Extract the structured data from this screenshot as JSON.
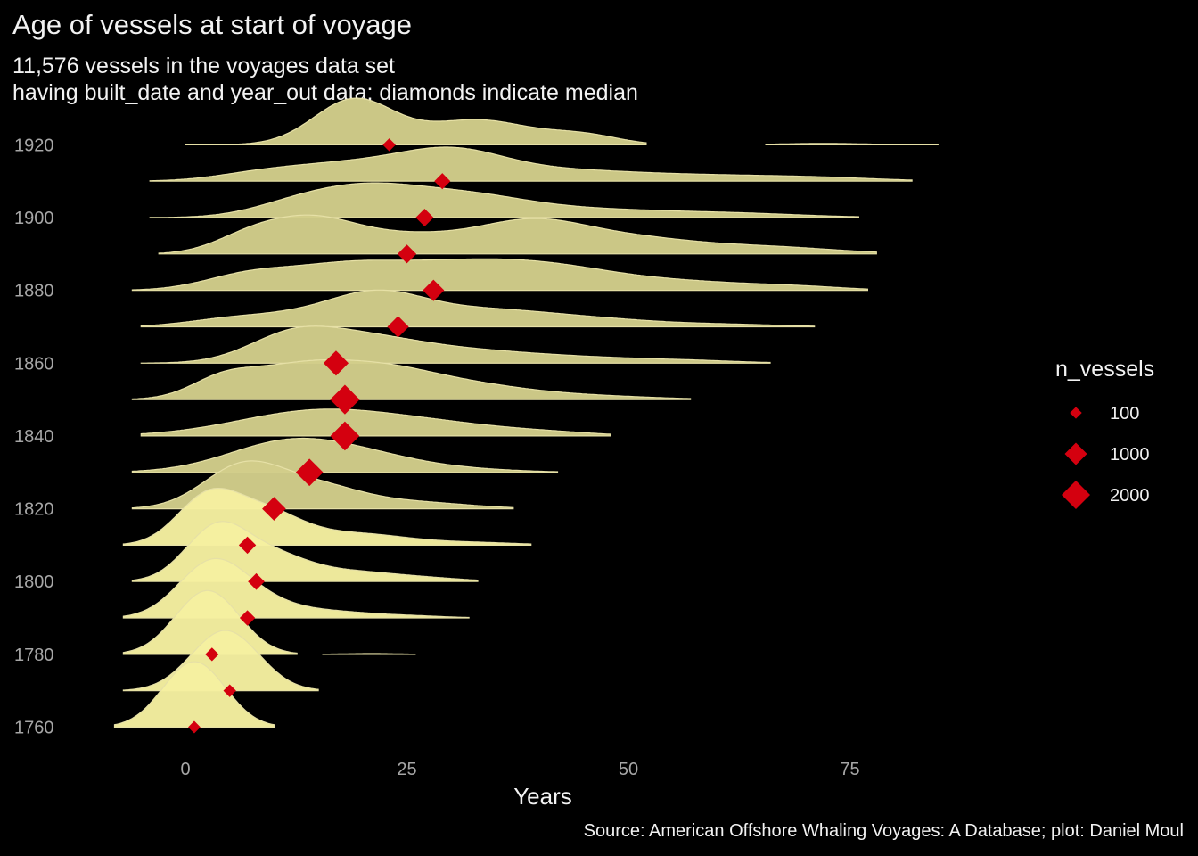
{
  "chart_data": {
    "type": "ridgeline",
    "title": "Age of vessels at start of voyage",
    "subtitle_lines": [
      "11,576 vessels in the voyages data set",
      "having built_date and year_out data; diamonds indicate median"
    ],
    "caption": "Source: American Offshore Whaling Voyages: A Database; plot: Daniel Moul",
    "xlabel": "Years",
    "ylabel": "",
    "xlim": [
      -8,
      85
    ],
    "x_ticks": [
      0,
      25,
      50,
      75
    ],
    "y_tick_labels": [
      "1760",
      "1780",
      "1800",
      "1820",
      "1840",
      "1860",
      "1880",
      "1900",
      "1920"
    ],
    "colors": {
      "background": "#000000",
      "ridge_fill_light": "#f5f0a0",
      "ridge_fill": "#d2cd8a",
      "ridge_line": "#e6e0a6",
      "median_marker": "#d4000f",
      "text": "#f2f2f2",
      "tick_text": "#a6a6a6"
    },
    "series": [
      {
        "decade": 1760,
        "median": 1,
        "n_vessels": 120,
        "min": -8,
        "max": 10,
        "peaks": [
          [
            1,
            3.5,
            1.0
          ]
        ]
      },
      {
        "decade": 1770,
        "median": 5,
        "n_vessels": 140,
        "min": -7,
        "max": 15,
        "peaks": [
          [
            4.5,
            3.8,
            1.0
          ]
        ]
      },
      {
        "decade": 1780,
        "median": 3,
        "n_vessels": 180,
        "min": -7,
        "max": 26,
        "peaks": [
          [
            2.5,
            3.6,
            1.0
          ],
          [
            21,
            3.0,
            0.012
          ]
        ],
        "gaps": [
          [
            12.6,
            15.5
          ]
        ]
      },
      {
        "decade": 1790,
        "median": 7,
        "n_vessels": 300,
        "min": -7,
        "max": 32,
        "peaks": [
          [
            3,
            3.8,
            1.0
          ],
          [
            9,
            4,
            0.25
          ],
          [
            17,
            4,
            0.1
          ],
          [
            25,
            4,
            0.04
          ]
        ]
      },
      {
        "decade": 1800,
        "median": 8,
        "n_vessels": 400,
        "min": -6,
        "max": 33,
        "peaks": [
          [
            3.5,
            3.5,
            1.0
          ],
          [
            10,
            4,
            0.45
          ],
          [
            19,
            5,
            0.18
          ],
          [
            28,
            4,
            0.05
          ]
        ]
      },
      {
        "decade": 1810,
        "median": 7,
        "n_vessels": 450,
        "min": -7,
        "max": 39,
        "peaks": [
          [
            2.5,
            3.5,
            1.0
          ],
          [
            9,
            4,
            0.65
          ],
          [
            19,
            6,
            0.25
          ],
          [
            33,
            5,
            0.05
          ]
        ]
      },
      {
        "decade": 1820,
        "median": 10,
        "n_vessels": 1200,
        "min": -6,
        "max": 37,
        "peaks": [
          [
            6.5,
            4.5,
            1.0
          ],
          [
            15,
            5,
            0.5
          ],
          [
            26,
            6,
            0.15
          ]
        ]
      },
      {
        "decade": 1830,
        "median": 14,
        "n_vessels": 1800,
        "min": -6,
        "max": 42,
        "peaks": [
          [
            12,
            7,
            1.0
          ],
          [
            22,
            6,
            0.3
          ],
          [
            32,
            6,
            0.08
          ]
        ]
      },
      {
        "decade": 1840,
        "median": 18,
        "n_vessels": 2100,
        "min": -5,
        "max": 48,
        "peaks": [
          [
            15,
            9,
            1.0
          ],
          [
            30,
            8,
            0.35
          ],
          [
            42,
            5,
            0.08
          ]
        ]
      },
      {
        "decade": 1850,
        "median": 18,
        "n_vessels": 2200,
        "min": -6,
        "max": 57,
        "peaks": [
          [
            4,
            3.5,
            0.45
          ],
          [
            12,
            6,
            0.9
          ],
          [
            22,
            6,
            0.75
          ],
          [
            32,
            7,
            0.4
          ],
          [
            46,
            7,
            0.1
          ]
        ]
      },
      {
        "decade": 1860,
        "median": 17,
        "n_vessels": 1400,
        "min": -5,
        "max": 66,
        "peaks": [
          [
            12,
            5,
            1.0
          ],
          [
            20,
            6,
            0.75
          ],
          [
            30,
            8,
            0.45
          ],
          [
            45,
            9,
            0.2
          ],
          [
            58,
            5,
            0.05
          ]
        ]
      },
      {
        "decade": 1870,
        "median": 24,
        "n_vessels": 900,
        "min": -5,
        "max": 71,
        "peaks": [
          [
            5,
            5,
            0.3
          ],
          [
            15,
            6,
            0.55
          ],
          [
            22,
            5,
            1.0
          ],
          [
            32,
            8,
            0.7
          ],
          [
            46,
            8,
            0.3
          ],
          [
            62,
            6,
            0.08
          ]
        ]
      },
      {
        "decade": 1880,
        "median": 28,
        "n_vessels": 900,
        "min": -6,
        "max": 77,
        "peaks": [
          [
            7,
            5,
            0.6
          ],
          [
            17,
            6,
            0.7
          ],
          [
            29,
            9,
            1.0
          ],
          [
            42,
            8,
            0.75
          ],
          [
            58,
            8,
            0.3
          ],
          [
            70,
            5,
            0.1
          ]
        ]
      },
      {
        "decade": 1890,
        "median": 25,
        "n_vessels": 600,
        "min": -3,
        "max": 78,
        "peaks": [
          [
            7,
            4,
            0.4
          ],
          [
            14,
            5,
            0.85
          ],
          [
            25,
            7,
            0.5
          ],
          [
            39,
            6,
            0.8
          ],
          [
            50,
            7,
            0.4
          ],
          [
            65,
            8,
            0.2
          ]
        ]
      },
      {
        "decade": 1900,
        "median": 27,
        "n_vessels": 500,
        "min": -4,
        "max": 76,
        "peaks": [
          [
            12,
            5,
            0.4
          ],
          [
            20,
            6,
            1.0
          ],
          [
            31,
            7,
            0.8
          ],
          [
            45,
            9,
            0.3
          ],
          [
            62,
            8,
            0.15
          ]
        ]
      },
      {
        "decade": 1910,
        "median": 29,
        "n_vessels": 350,
        "min": -4,
        "max": 82,
        "peaks": [
          [
            8,
            5,
            0.2
          ],
          [
            18,
            7,
            0.6
          ],
          [
            30,
            6,
            1.0
          ],
          [
            42,
            8,
            0.35
          ],
          [
            58,
            9,
            0.2
          ],
          [
            72,
            7,
            0.1
          ]
        ]
      },
      {
        "decade": 1920,
        "median": 23,
        "n_vessels": 150,
        "min": 0,
        "max": 85,
        "peaks": [
          [
            19,
            4.5,
            1.0
          ],
          [
            33,
            6,
            0.55
          ],
          [
            45,
            4,
            0.2
          ],
          [
            72,
            5,
            0.03
          ]
        ],
        "gaps": [
          [
            52,
            65.5
          ]
        ]
      }
    ],
    "legend": {
      "title": "n_vessels",
      "position": "right",
      "entries": [
        {
          "label": "100",
          "value": 100
        },
        {
          "label": "1000",
          "value": 1000
        },
        {
          "label": "2000",
          "value": 2000
        }
      ]
    }
  }
}
